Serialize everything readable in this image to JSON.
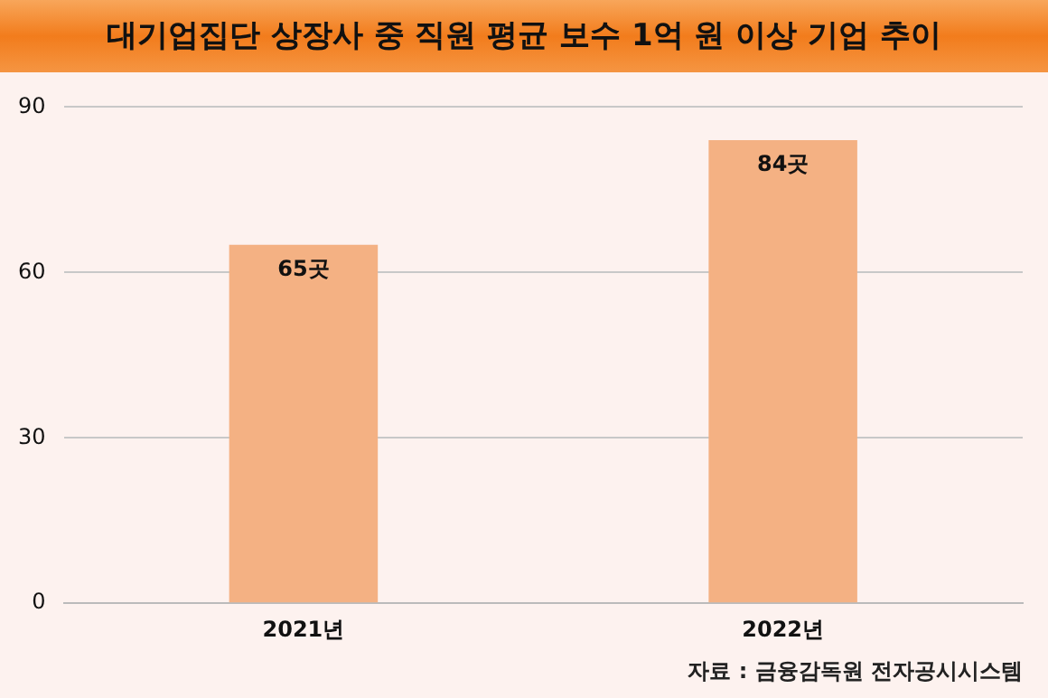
{
  "chart_data": {
    "type": "bar",
    "title": "대기업집단 상장사 중 직원 평균 보수 1억 원 이상 기업 추이",
    "categories": [
      "2021년",
      "2022년"
    ],
    "values": [
      65,
      84
    ],
    "color": "#f4b183",
    "value_labels": [
      "65곳",
      "84곳"
    ],
    "ylim": [
      0,
      90
    ],
    "yticks": [
      0,
      30,
      60,
      90
    ],
    "grid": "y",
    "annotations": [
      "자료 : 금융감독원 전자공시시스템"
    ]
  }
}
